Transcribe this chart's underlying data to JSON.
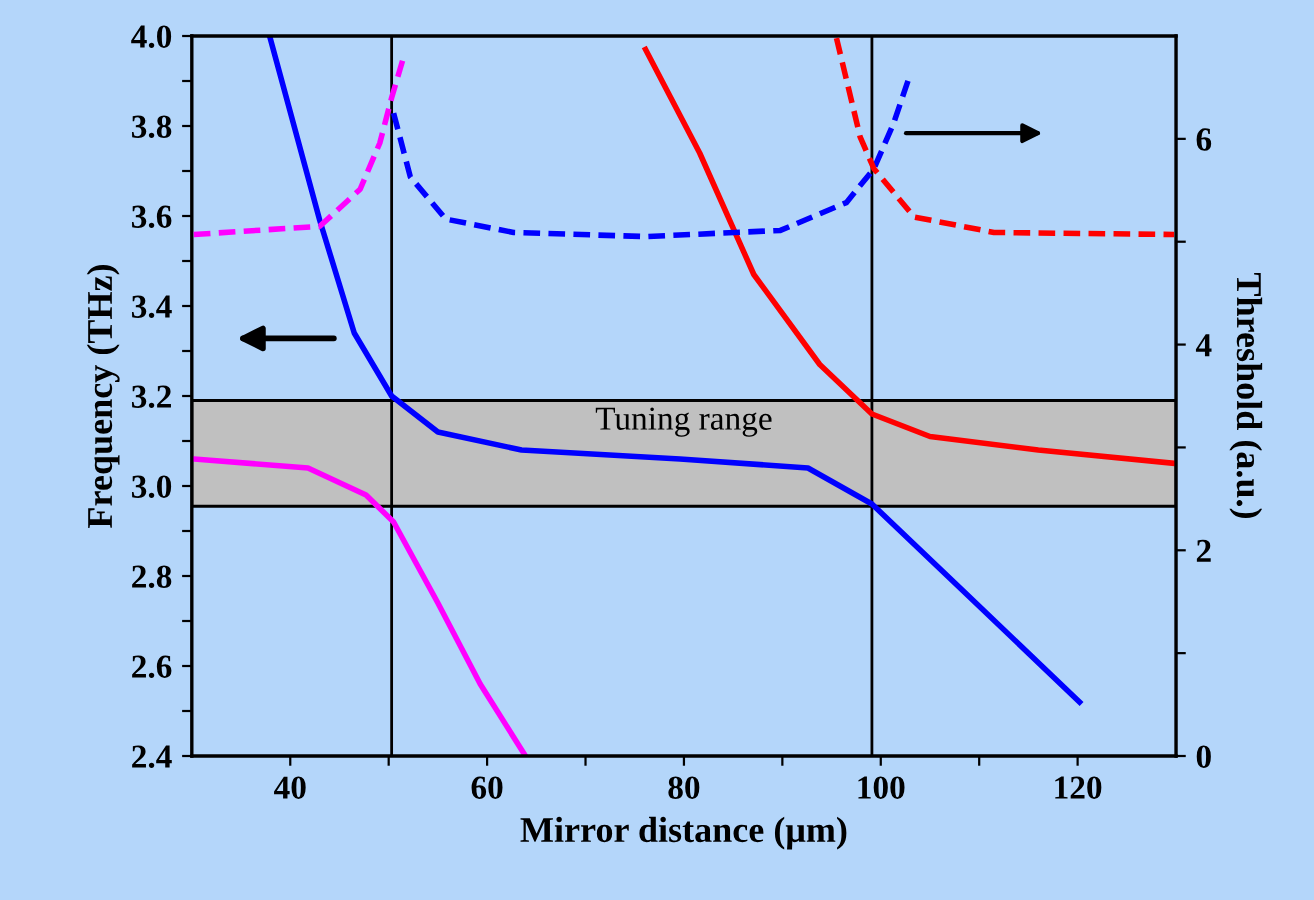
{
  "chart_data": {
    "type": "line",
    "xlabel": "Mirror distance (μm)",
    "ylabel": "Frequency (THz)",
    "y2label": "Threshold (a.u.)",
    "xlim": [
      30,
      130
    ],
    "xticks": [
      40,
      60,
      80,
      100,
      120,
      {
        "value": 50,
        "label": null
      },
      {
        "value": 70,
        "label": null
      },
      {
        "value": 90,
        "label": null
      },
      {
        "value": 110,
        "label": null
      }
    ],
    "ylim": [
      2.4,
      4.0
    ],
    "yticks": [
      {
        "value": 2.4,
        "label": "2.4"
      },
      {
        "value": 2.6,
        "label": "2.6"
      },
      {
        "value": 2.8,
        "label": "2.8"
      },
      {
        "value": 3.0,
        "label": "3.0"
      },
      {
        "value": 3.2,
        "label": "3.2"
      },
      {
        "value": 3.4,
        "label": "3.4"
      },
      {
        "value": 3.6,
        "label": "3.6"
      },
      {
        "value": 3.8,
        "label": "3.8"
      },
      {
        "value": 4.0,
        "label": "4.0"
      },
      {
        "value": 2.5,
        "label": null
      },
      {
        "value": 2.7,
        "label": null
      },
      {
        "value": 2.9,
        "label": null
      },
      {
        "value": 3.1,
        "label": null
      },
      {
        "value": 3.3,
        "label": null
      },
      {
        "value": 3.5,
        "label": null
      },
      {
        "value": 3.7,
        "label": null
      },
      {
        "value": 3.9,
        "label": null
      }
    ],
    "y2lim": [
      0,
      7
    ],
    "y2ticks": [
      0,
      2,
      4,
      6,
      {
        "value": 1,
        "label": null
      },
      {
        "value": 3,
        "label": null
      },
      {
        "value": 5,
        "label": null
      }
    ],
    "grid": false,
    "legend": false,
    "bands": [
      {
        "axis": "y",
        "from": 2.955,
        "to": 3.19,
        "label": "Tuning range",
        "color": "#c0c0c0"
      }
    ],
    "ref_lines": [
      {
        "axis": "x",
        "value": 50.3,
        "color": "#000000"
      },
      {
        "axis": "x",
        "value": 99.1,
        "color": "#000000"
      }
    ],
    "series": [
      {
        "color": "#0000ff",
        "line_style": "solid",
        "x": [
          37.9,
          43.0,
          46.5,
          50.3,
          55.0,
          63.5,
          79.6,
          92.6,
          99.1,
          108.7,
          120.2
        ],
        "values": [
          4.0,
          3.59,
          3.34,
          3.2,
          3.12,
          3.08,
          3.06,
          3.04,
          2.96,
          2.76,
          2.52
        ]
      },
      {
        "color": "#ff00ff",
        "line_style": "solid",
        "x": [
          30.2,
          41.8,
          47.7,
          50.5,
          55.0,
          59.3,
          63.9
        ],
        "values": [
          3.06,
          3.04,
          2.98,
          2.92,
          2.74,
          2.56,
          2.4
        ]
      },
      {
        "color": "#ff0000",
        "line_style": "solid",
        "x": [
          76.1,
          81.6,
          87.1,
          93.8,
          99.1,
          105.0,
          116.0,
          130.0
        ],
        "values": [
          3.97,
          3.74,
          3.47,
          3.27,
          3.16,
          3.11,
          3.08,
          3.05
        ]
      },
      {
        "color": "#ff00ff",
        "line_style": "dashed",
        "axis": "y2",
        "x": [
          30.2,
          43.0,
          47.1,
          49.1,
          50.3,
          51.5
        ],
        "values": [
          5.07,
          5.15,
          5.51,
          5.96,
          6.4,
          6.79
        ]
      },
      {
        "color": "#0000ff",
        "line_style": "dashed",
        "axis": "y2",
        "x": [
          50.5,
          52.2,
          55.8,
          62.7,
          76.1,
          89.8,
          96.5,
          99.3,
          101.3,
          103.0
        ],
        "values": [
          6.25,
          5.63,
          5.22,
          5.09,
          5.05,
          5.11,
          5.38,
          5.71,
          6.15,
          6.63
        ]
      },
      {
        "color": "#ff0000",
        "line_style": "dashed",
        "axis": "y2",
        "x": [
          95.5,
          97.9,
          99.3,
          103.4,
          111.5,
          129.8
        ],
        "values": [
          6.98,
          6.02,
          5.71,
          5.24,
          5.09,
          5.07
        ]
      }
    ]
  }
}
